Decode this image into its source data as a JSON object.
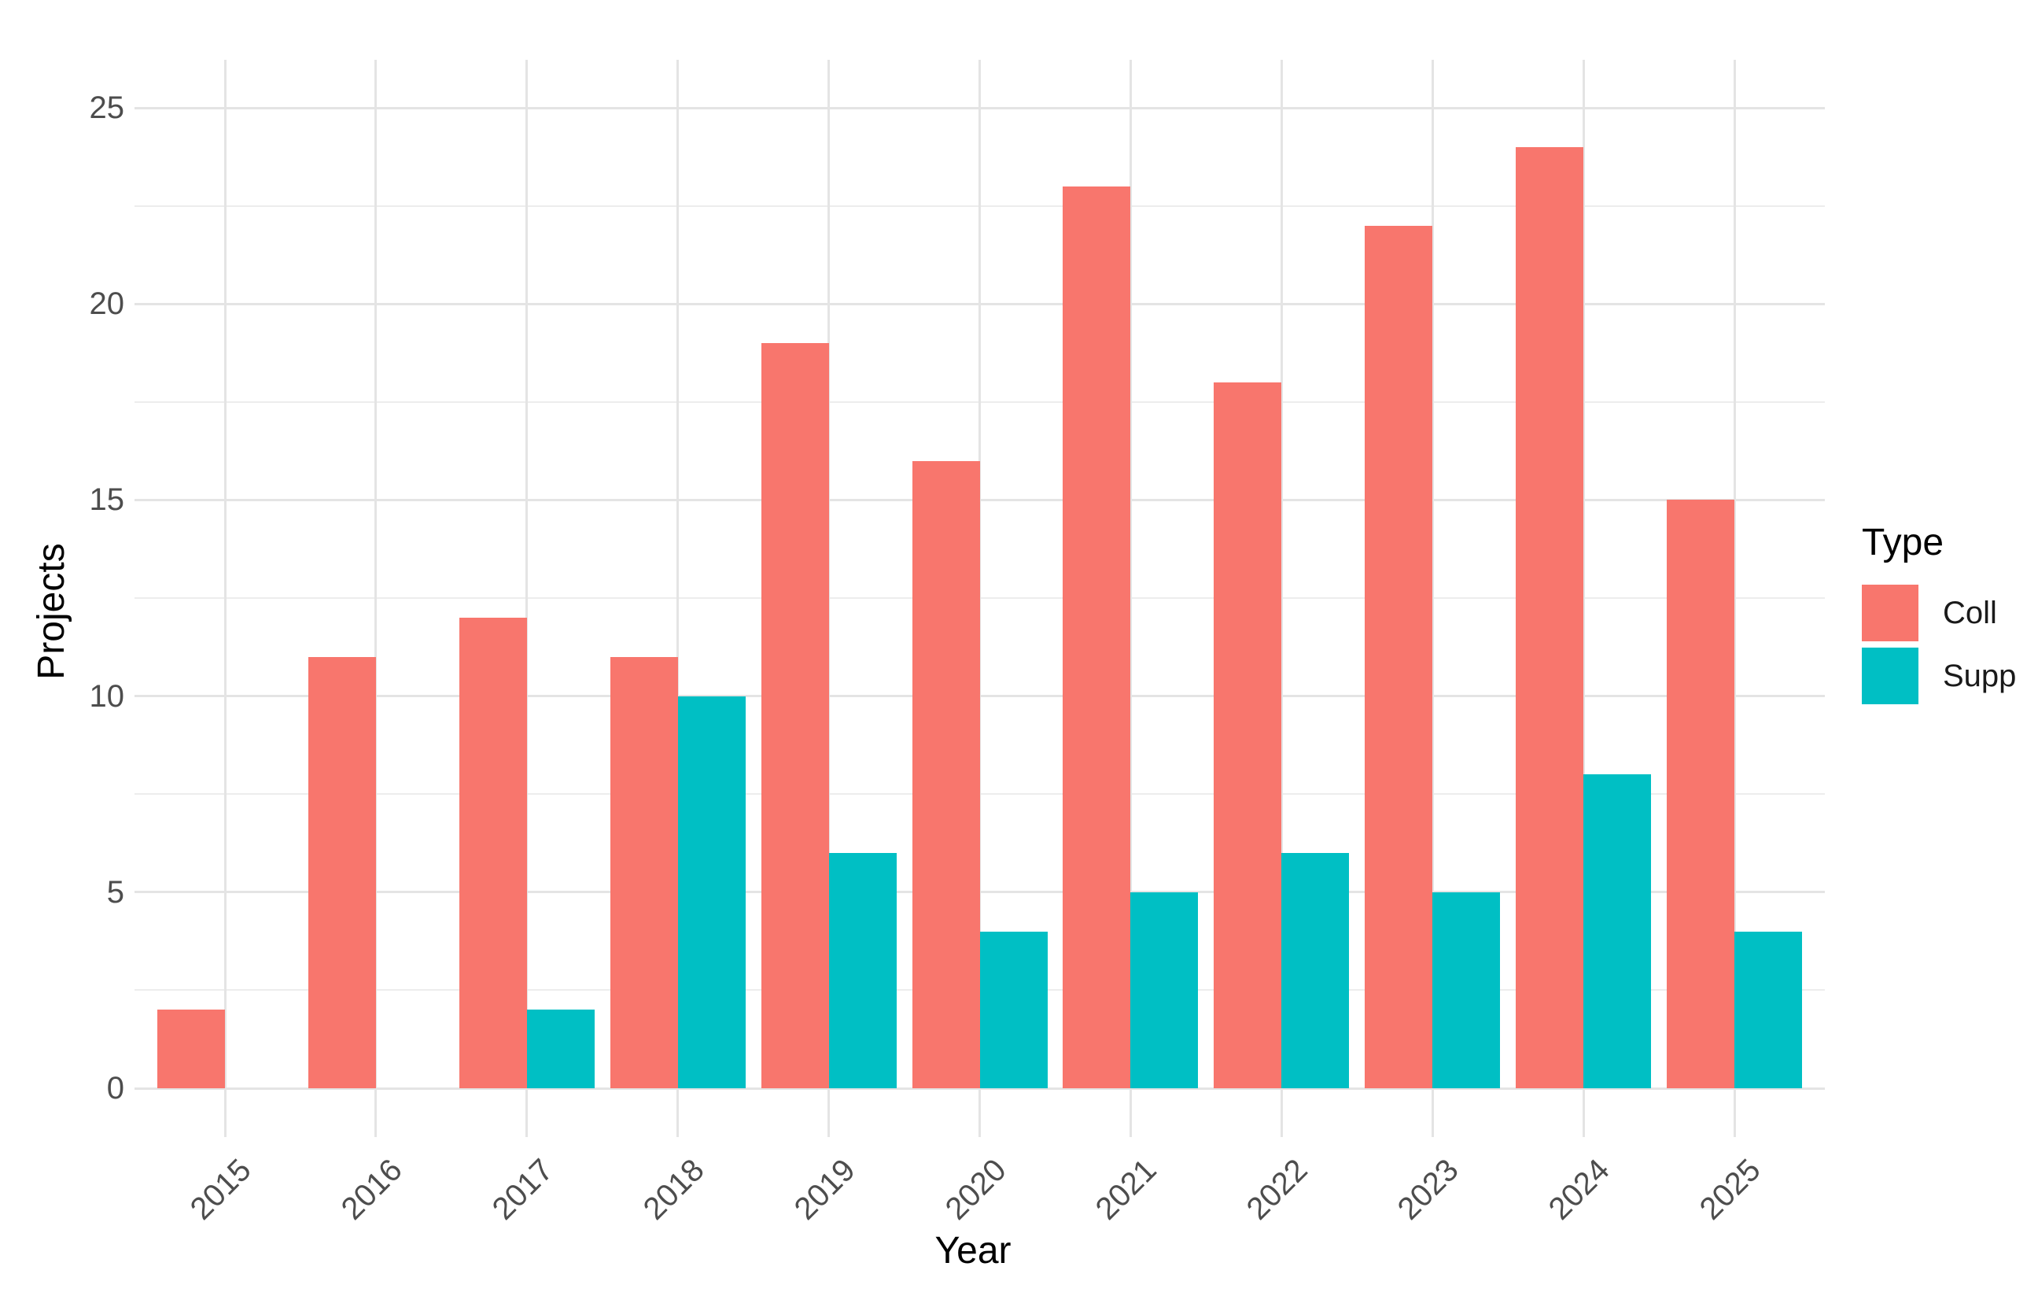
{
  "chart_data": {
    "type": "bar",
    "title": "",
    "categories": [
      "2015",
      "2016",
      "2017",
      "2018",
      "2019",
      "2020",
      "2021",
      "2022",
      "2023",
      "2024",
      "2025"
    ],
    "series": [
      {
        "name": "Coll",
        "color": "#F8766D",
        "values": [
          2,
          11,
          12,
          11,
          19,
          16,
          23,
          18,
          22,
          24,
          15
        ]
      },
      {
        "name": "Supp",
        "color": "#00BFC4",
        "values": [
          0,
          0,
          2,
          10,
          6,
          4,
          5,
          6,
          5,
          8,
          4
        ]
      }
    ],
    "xlabel": "Year",
    "ylabel": "Projects",
    "ylim": [
      0,
      25
    ],
    "yticks": [
      0,
      5,
      10,
      15,
      20,
      25
    ],
    "minor_gridlines": [
      2.5,
      7.5,
      12.5,
      17.5,
      22.5
    ],
    "grid": "on",
    "bar_layout": "dodged",
    "legend": {
      "title": "Type",
      "position": "right",
      "entries": [
        "Coll",
        "Supp"
      ]
    },
    "style": {
      "background": "#FFFFFF",
      "major_grid_color": "#E4E4E4",
      "minor_grid_color": "#EDEDED",
      "axis_tick_color": "#4D4D4D",
      "axis_title_color": "#000000",
      "coll_color": "#F8766D",
      "supp_color": "#00BFC4"
    }
  }
}
